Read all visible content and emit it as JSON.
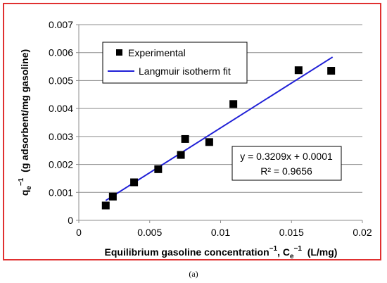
{
  "chart_data": {
    "type": "scatter",
    "xlabel": "Equilibrium gasoline concentration",
    "xlabel_suffix": ", C",
    "xlabel_units": "(L/mg)",
    "ylabel": "q",
    "ylabel_units": "(g adsorbent/mg gasoline)",
    "superscript": "−1",
    "subscript": "e",
    "xlim": [
      0,
      0.02
    ],
    "ylim": [
      0,
      0.007
    ],
    "x_ticks": [
      "0",
      "0.005",
      "0.01",
      "0.015",
      "0.02"
    ],
    "x_tick_values": [
      0,
      0.005,
      0.01,
      0.015,
      0.02
    ],
    "y_ticks": [
      "0",
      "0.001",
      "0.002",
      "0.003",
      "0.004",
      "0.005",
      "0.006",
      "0.007"
    ],
    "y_tick_values": [
      0,
      0.001,
      0.002,
      0.003,
      0.004,
      0.005,
      0.006,
      0.007
    ],
    "grid": "horizontal",
    "legend_position": "top-left",
    "series": [
      {
        "name": "Experimental",
        "kind": "markers",
        "color": "#000000",
        "x": [
          0.0019,
          0.0024,
          0.0039,
          0.0056,
          0.0072,
          0.0075,
          0.0092,
          0.0109,
          0.0155,
          0.0178
        ],
        "y": [
          0.00053,
          0.00085,
          0.00136,
          0.00183,
          0.00234,
          0.00291,
          0.0028,
          0.00416,
          0.00537,
          0.00535
        ]
      },
      {
        "name": "Langmuir isotherm fit",
        "kind": "line",
        "color": "#1f1fd6",
        "x": [
          0.0019,
          0.0179
        ],
        "y": [
          0.00071,
          0.00584
        ]
      }
    ],
    "annotation": {
      "equation": "y = 0.3209x + 0.0001",
      "r2": "R² = 0.9656"
    }
  },
  "caption": "(a)"
}
